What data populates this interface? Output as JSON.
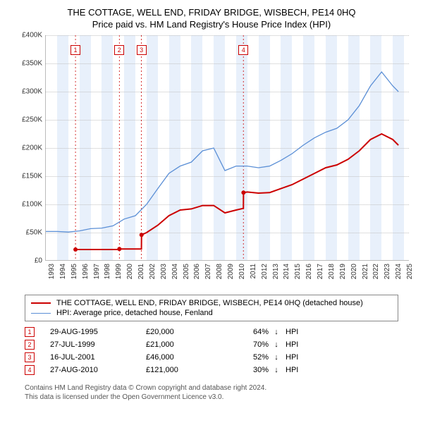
{
  "title_line1": "THE COTTAGE, WELL END, FRIDAY BRIDGE, WISBECH, PE14 0HQ",
  "title_line2": "Price paid vs. HM Land Registry's House Price Index (HPI)",
  "chart": {
    "type": "line",
    "background_color": "#ffffff",
    "band_color": "#e8f0fb",
    "grid_color": "#c0c0c0",
    "axis_color": "#bbbbbb",
    "text_color": "#333333",
    "x_range": [
      1993,
      2025.5
    ],
    "x_ticks": [
      1993,
      1994,
      1995,
      1996,
      1997,
      1998,
      1999,
      2000,
      2001,
      2002,
      2003,
      2004,
      2005,
      2006,
      2007,
      2008,
      2009,
      2010,
      2011,
      2012,
      2013,
      2014,
      2015,
      2016,
      2017,
      2018,
      2019,
      2020,
      2021,
      2022,
      2023,
      2024,
      2025
    ],
    "y_range": [
      0,
      400000
    ],
    "y_ticks": [
      0,
      50000,
      100000,
      150000,
      200000,
      250000,
      300000,
      350000,
      400000
    ],
    "y_tick_labels": [
      "£0",
      "£50K",
      "£100K",
      "£150K",
      "£200K",
      "£250K",
      "£300K",
      "£350K",
      "£400K"
    ],
    "y_tick_fontsize": 10,
    "x_tick_fontsize": 10,
    "series": {
      "property": {
        "color": "#cc0000",
        "line_width": 2,
        "points": [
          [
            1995.65,
            20000
          ],
          [
            1999.56,
            20000
          ],
          [
            1999.57,
            21000
          ],
          [
            2001.54,
            21000
          ],
          [
            2001.55,
            46000
          ],
          [
            2002,
            50000
          ],
          [
            2003,
            63000
          ],
          [
            2004,
            80000
          ],
          [
            2005,
            90000
          ],
          [
            2006,
            92000
          ],
          [
            2007,
            98000
          ],
          [
            2008,
            98000
          ],
          [
            2009,
            85000
          ],
          [
            2010,
            90000
          ],
          [
            2010.65,
            93000
          ],
          [
            2010.66,
            121000
          ],
          [
            2011,
            122000
          ],
          [
            2012,
            120000
          ],
          [
            2013,
            121000
          ],
          [
            2014,
            128000
          ],
          [
            2015,
            135000
          ],
          [
            2016,
            145000
          ],
          [
            2017,
            155000
          ],
          [
            2018,
            165000
          ],
          [
            2019,
            170000
          ],
          [
            2020,
            180000
          ],
          [
            2021,
            195000
          ],
          [
            2022,
            215000
          ],
          [
            2023,
            225000
          ],
          [
            2024,
            215000
          ],
          [
            2024.5,
            205000
          ]
        ]
      },
      "hpi": {
        "color": "#5b8fd6",
        "line_width": 1.3,
        "points": [
          [
            1993,
            52000
          ],
          [
            1994,
            52000
          ],
          [
            1995,
            51000
          ],
          [
            1996,
            53000
          ],
          [
            1997,
            57000
          ],
          [
            1998,
            58000
          ],
          [
            1999,
            62000
          ],
          [
            2000,
            74000
          ],
          [
            2001,
            80000
          ],
          [
            2002,
            100000
          ],
          [
            2003,
            128000
          ],
          [
            2004,
            155000
          ],
          [
            2005,
            168000
          ],
          [
            2006,
            175000
          ],
          [
            2007,
            195000
          ],
          [
            2008,
            200000
          ],
          [
            2009,
            160000
          ],
          [
            2010,
            168000
          ],
          [
            2011,
            168000
          ],
          [
            2012,
            165000
          ],
          [
            2013,
            168000
          ],
          [
            2014,
            178000
          ],
          [
            2015,
            190000
          ],
          [
            2016,
            205000
          ],
          [
            2017,
            218000
          ],
          [
            2018,
            228000
          ],
          [
            2019,
            235000
          ],
          [
            2020,
            250000
          ],
          [
            2021,
            275000
          ],
          [
            2022,
            310000
          ],
          [
            2023,
            335000
          ],
          [
            2024,
            310000
          ],
          [
            2024.5,
            300000
          ]
        ]
      }
    },
    "sale_markers": [
      {
        "n": "1",
        "year": 1995.65,
        "color": "#cc0000"
      },
      {
        "n": "2",
        "year": 1999.57,
        "color": "#cc0000"
      },
      {
        "n": "3",
        "year": 2001.54,
        "color": "#cc0000"
      },
      {
        "n": "4",
        "year": 2010.65,
        "color": "#cc0000"
      }
    ]
  },
  "legend": {
    "property_label": "THE COTTAGE, WELL END, FRIDAY BRIDGE, WISBECH, PE14 0HQ (detached house)",
    "hpi_label": "HPI: Average price, detached house, Fenland"
  },
  "sales": [
    {
      "n": "1",
      "date": "29-AUG-1995",
      "price": "£20,000",
      "pct": "64%",
      "arrow": "↓",
      "suffix": "HPI",
      "color": "#cc0000"
    },
    {
      "n": "2",
      "date": "27-JUL-1999",
      "price": "£21,000",
      "pct": "70%",
      "arrow": "↓",
      "suffix": "HPI",
      "color": "#cc0000"
    },
    {
      "n": "3",
      "date": "16-JUL-2001",
      "price": "£46,000",
      "pct": "52%",
      "arrow": "↓",
      "suffix": "HPI",
      "color": "#cc0000"
    },
    {
      "n": "4",
      "date": "27-AUG-2010",
      "price": "£121,000",
      "pct": "30%",
      "arrow": "↓",
      "suffix": "HPI",
      "color": "#cc0000"
    }
  ],
  "footer_line1": "Contains HM Land Registry data © Crown copyright and database right 2024.",
  "footer_line2": "This data is licensed under the Open Government Licence v3.0."
}
